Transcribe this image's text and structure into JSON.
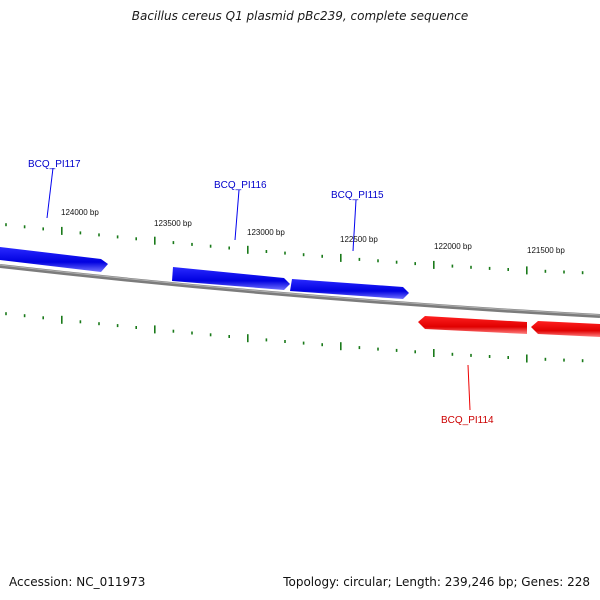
{
  "title": "Bacillus cereus Q1 plasmid pBc239, complete sequence",
  "footer": {
    "accession_label": "Accession:",
    "accession": "NC_011973",
    "topology_label": "Topology:",
    "topology": "circular",
    "length_label": "Length:",
    "length": "239,246 bp",
    "genes_label": "Genes:",
    "genes": "228"
  },
  "colors": {
    "forward_gene": "#0000ee",
    "reverse_gene": "#ee0000",
    "backbone": "#808080",
    "tick": "#1a7a1a",
    "label_text": "#111111"
  },
  "ticks": [
    {
      "label": "124000 bp"
    },
    {
      "label": "123500 bp"
    },
    {
      "label": "123000 bp"
    },
    {
      "label": "122500 bp"
    },
    {
      "label": "122000 bp"
    },
    {
      "label": "121500 bp"
    }
  ],
  "genes": [
    {
      "name": "BCQ_PI117",
      "strand": "forward"
    },
    {
      "name": "BCQ_PI116",
      "strand": "forward"
    },
    {
      "name": "BCQ_PI115",
      "strand": "forward"
    },
    {
      "name": "BCQ_PI114",
      "strand": "reverse"
    }
  ]
}
